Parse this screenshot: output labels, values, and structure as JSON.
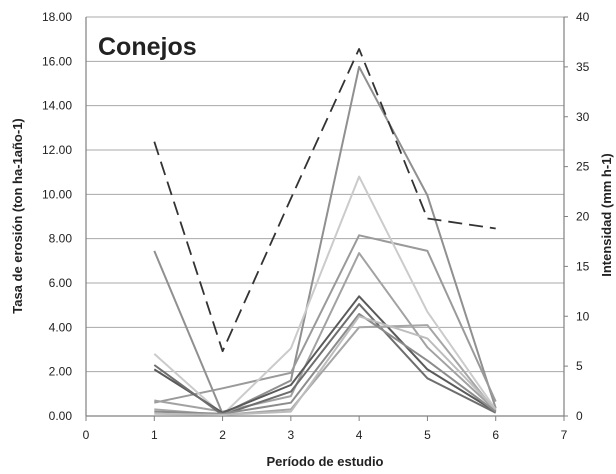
{
  "chart_data": {
    "type": "line",
    "title": "Conejos",
    "xlabel": "Período de estudio",
    "ylabel": "Tasa de erosión (ton ha-1año-1)",
    "y2label": "Intensidad (mm h-1)",
    "xlim": [
      0,
      7
    ],
    "ylim": [
      0,
      18
    ],
    "y2lim": [
      0,
      40
    ],
    "x_ticks": [
      "0",
      "1",
      "2",
      "3",
      "4",
      "5",
      "6",
      "7"
    ],
    "y_ticks": [
      "0.00",
      "2.00",
      "4.00",
      "6.00",
      "8.00",
      "10.00",
      "12.00",
      "14.00",
      "16.00",
      "18.00"
    ],
    "y2_ticks": [
      "0",
      "5",
      "10",
      "15",
      "20",
      "25",
      "30",
      "35",
      "40"
    ],
    "grid": "horizontal",
    "legend": "none",
    "x": [
      1,
      2,
      3,
      4,
      5,
      6
    ],
    "series": [
      {
        "axis": "left",
        "color": "#909090",
        "style": "solid",
        "values": [
          7.45,
          0.1,
          1.6,
          15.75,
          9.95,
          0.35
        ]
      },
      {
        "axis": "left",
        "color": "#9a9a9a",
        "style": "solid",
        "values": [
          0.6,
          1.25,
          1.95,
          8.15,
          7.45,
          0.65
        ]
      },
      {
        "axis": "left",
        "color": "#cbcbcb",
        "style": "solid",
        "values": [
          2.8,
          0.05,
          3.05,
          10.8,
          4.7,
          0.3
        ]
      },
      {
        "axis": "left",
        "color": "#a2a2a2",
        "style": "solid",
        "values": [
          0.7,
          0.2,
          0.9,
          7.35,
          3.1,
          0.25
        ]
      },
      {
        "axis": "left",
        "color": "#5a5a5a",
        "style": "solid",
        "values": [
          2.1,
          0.15,
          1.4,
          5.4,
          2.1,
          0.2
        ]
      },
      {
        "axis": "left",
        "color": "#6e6e6e",
        "style": "solid",
        "values": [
          2.3,
          0.05,
          1.1,
          5.05,
          1.7,
          0.15
        ]
      },
      {
        "axis": "left",
        "color": "#a6a6a6",
        "style": "solid",
        "values": [
          0.3,
          0.05,
          0.3,
          4.0,
          4.1,
          0.2
        ]
      },
      {
        "axis": "left",
        "color": "#8c8c8c",
        "style": "solid",
        "values": [
          0.2,
          0.1,
          0.6,
          4.6,
          2.5,
          0.2
        ]
      },
      {
        "axis": "left",
        "color": "#bdbdbd",
        "style": "solid",
        "values": [
          0.1,
          0.05,
          0.2,
          4.5,
          3.5,
          0.3
        ]
      },
      {
        "axis": "right",
        "color": "#333333",
        "style": "dashed",
        "values": [
          27.5,
          6.5,
          21.8,
          36.8,
          19.8,
          18.8
        ]
      }
    ]
  }
}
